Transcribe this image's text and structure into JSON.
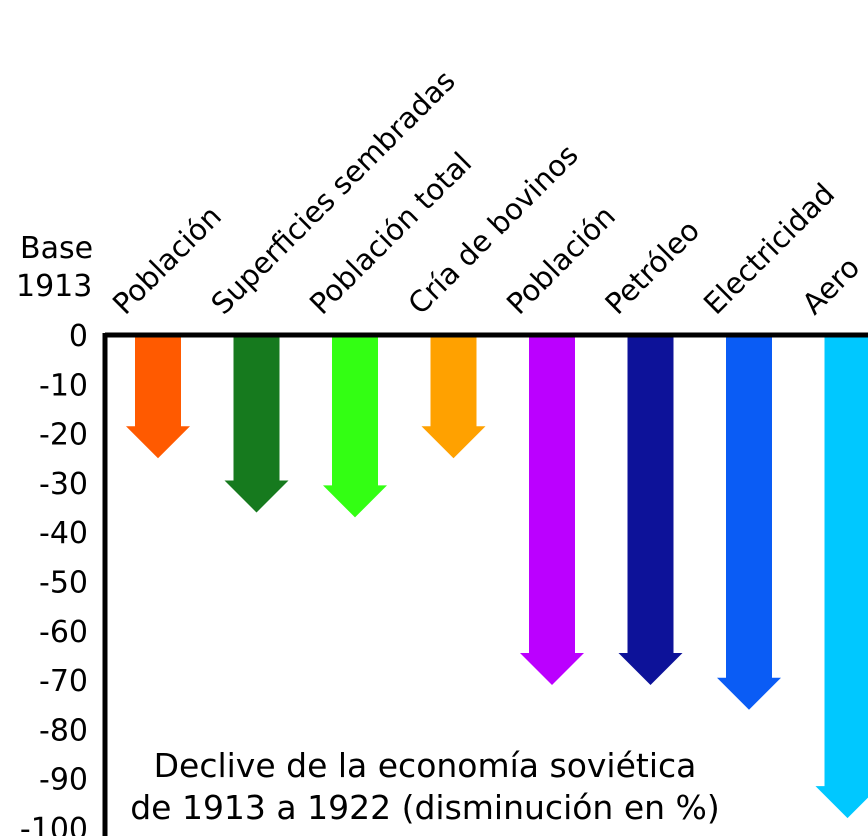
{
  "base_label": [
    "Base",
    "1913"
  ],
  "caption": {
    "line1": "Declive de la economía soviética",
    "line2": "de 1913 a 1922 (disminución en %)"
  },
  "chart_data": {
    "type": "bar",
    "title": "Declive de la economía soviética de 1913 a 1922 (disminución en %)",
    "ylabel": "Base 1913",
    "ylim": [
      -100,
      0
    ],
    "yticks": [
      0,
      -10,
      -20,
      -30,
      -40,
      -50,
      -60,
      -70,
      -80,
      -90,
      -100
    ],
    "categories": [
      "Población",
      "Superficies sembradas",
      "Población total",
      "Cría de bovinos",
      "Población",
      "Petróleo",
      "Electricidad",
      "Aero"
    ],
    "values": [
      -25,
      -36,
      -37,
      -25,
      -71,
      -71,
      -76,
      -98
    ],
    "colors": [
      "#ff5a00",
      "#167a1e",
      "#33ff13",
      "#ffa100",
      "#bb00ff",
      "#0d1299",
      "#0a5cf5",
      "#00c8ff"
    ]
  }
}
